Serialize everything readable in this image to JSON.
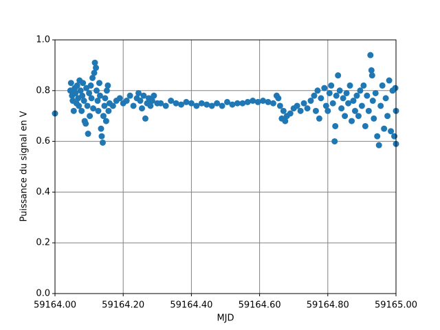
{
  "chart_data": {
    "type": "scatter",
    "xlabel": "MJD",
    "ylabel": "Puissance du signal en V",
    "color": "#1f77b4",
    "grid": true,
    "xlim": [
      59164.0,
      59165.0
    ],
    "xticks": [
      {
        "value": 59164.0,
        "label": "59164.00"
      },
      {
        "value": 59164.2,
        "label": "59164.20"
      },
      {
        "value": 59164.4,
        "label": "59164.40"
      },
      {
        "value": 59164.6,
        "label": "59164.60"
      },
      {
        "value": 59164.8,
        "label": "59164.80"
      },
      {
        "value": 59165.0,
        "label": "59165.00"
      }
    ],
    "ylim": [
      0,
      1.0
    ],
    "yticks": [
      {
        "value": 0,
        "label": "0.0"
      },
      0.2,
      0.4,
      0.6,
      0.8,
      {
        "value": 1.0,
        "label": "1.0"
      }
    ],
    "x": [
      59164.0,
      59164.045,
      59164.047,
      59164.05,
      59164.052,
      59164.055,
      59164.058,
      59164.06,
      59164.063,
      59164.065,
      59164.068,
      59164.07,
      59164.072,
      59164.075,
      59164.078,
      59164.08,
      59164.082,
      59164.085,
      59164.087,
      59164.09,
      59164.092,
      59164.095,
      59164.097,
      59164.1,
      59164.102,
      59164.105,
      59164.107,
      59164.11,
      59164.112,
      59164.115,
      59164.117,
      59164.12,
      59164.122,
      59164.125,
      59164.127,
      59164.13,
      59164.132,
      59164.135,
      59164.137,
      59164.14,
      59164.142,
      59164.145,
      59164.147,
      59164.15,
      59164.152,
      59164.155,
      59164.157,
      59164.16,
      59164.17,
      59164.18,
      59164.19,
      59164.2,
      59164.21,
      59164.22,
      59164.23,
      59164.24,
      59164.245,
      59164.25,
      59164.255,
      59164.26,
      59164.265,
      59164.27,
      59164.275,
      59164.28,
      59164.285,
      59164.29,
      59164.3,
      59164.31,
      59164.325,
      59164.34,
      59164.355,
      59164.37,
      59164.385,
      59164.4,
      59164.415,
      59164.43,
      59164.445,
      59164.46,
      59164.475,
      59164.49,
      59164.505,
      59164.52,
      59164.535,
      59164.55,
      59164.565,
      59164.58,
      59164.595,
      59164.61,
      59164.625,
      59164.64,
      59164.65,
      59164.655,
      59164.66,
      59164.665,
      59164.67,
      59164.675,
      59164.68,
      59164.69,
      59164.7,
      59164.71,
      59164.72,
      59164.73,
      59164.74,
      59164.75,
      59164.76,
      59164.765,
      59164.77,
      59164.775,
      59164.78,
      59164.79,
      59164.795,
      59164.8,
      59164.805,
      59164.81,
      59164.815,
      59164.82,
      59164.822,
      59164.825,
      59164.83,
      59164.835,
      59164.84,
      59164.845,
      59164.85,
      59164.855,
      59164.86,
      59164.865,
      59164.87,
      59164.875,
      59164.88,
      59164.885,
      59164.89,
      59164.895,
      59164.9,
      59164.905,
      59164.91,
      59164.915,
      59164.92,
      59164.925,
      59164.928,
      59164.93,
      59164.932,
      59164.935,
      59164.94,
      59164.945,
      59164.95,
      59164.955,
      59164.96,
      59164.965,
      59164.97,
      59164.975,
      59164.98,
      59164.985,
      59164.99,
      59164.995,
      59165.0,
      59165.0,
      59164.998
    ],
    "values": [
      0.71,
      0.8,
      0.83,
      0.78,
      0.76,
      0.72,
      0.81,
      0.79,
      0.75,
      0.82,
      0.77,
      0.74,
      0.84,
      0.8,
      0.72,
      0.78,
      0.83,
      0.76,
      0.68,
      0.67,
      0.81,
      0.74,
      0.63,
      0.79,
      0.7,
      0.82,
      0.77,
      0.85,
      0.73,
      0.87,
      0.91,
      0.89,
      0.8,
      0.76,
      0.72,
      0.83,
      0.78,
      0.65,
      0.62,
      0.595,
      0.7,
      0.74,
      0.77,
      0.68,
      0.8,
      0.82,
      0.72,
      0.75,
      0.74,
      0.76,
      0.77,
      0.75,
      0.76,
      0.78,
      0.74,
      0.77,
      0.79,
      0.76,
      0.73,
      0.78,
      0.69,
      0.75,
      0.77,
      0.74,
      0.76,
      0.78,
      0.75,
      0.75,
      0.74,
      0.76,
      0.75,
      0.745,
      0.755,
      0.75,
      0.74,
      0.75,
      0.745,
      0.74,
      0.75,
      0.74,
      0.755,
      0.745,
      0.75,
      0.75,
      0.755,
      0.76,
      0.755,
      0.76,
      0.755,
      0.75,
      0.78,
      0.77,
      0.74,
      0.69,
      0.72,
      0.68,
      0.7,
      0.71,
      0.73,
      0.74,
      0.72,
      0.75,
      0.73,
      0.76,
      0.78,
      0.72,
      0.8,
      0.69,
      0.77,
      0.81,
      0.74,
      0.72,
      0.79,
      0.82,
      0.75,
      0.6,
      0.66,
      0.78,
      0.86,
      0.8,
      0.73,
      0.77,
      0.7,
      0.79,
      0.75,
      0.82,
      0.68,
      0.76,
      0.72,
      0.78,
      0.7,
      0.8,
      0.74,
      0.82,
      0.66,
      0.78,
      0.72,
      0.94,
      0.88,
      0.86,
      0.76,
      0.69,
      0.79,
      0.62,
      0.585,
      0.74,
      0.82,
      0.65,
      0.77,
      0.7,
      0.84,
      0.64,
      0.8,
      0.62,
      0.59,
      0.72,
      0.81
    ]
  }
}
